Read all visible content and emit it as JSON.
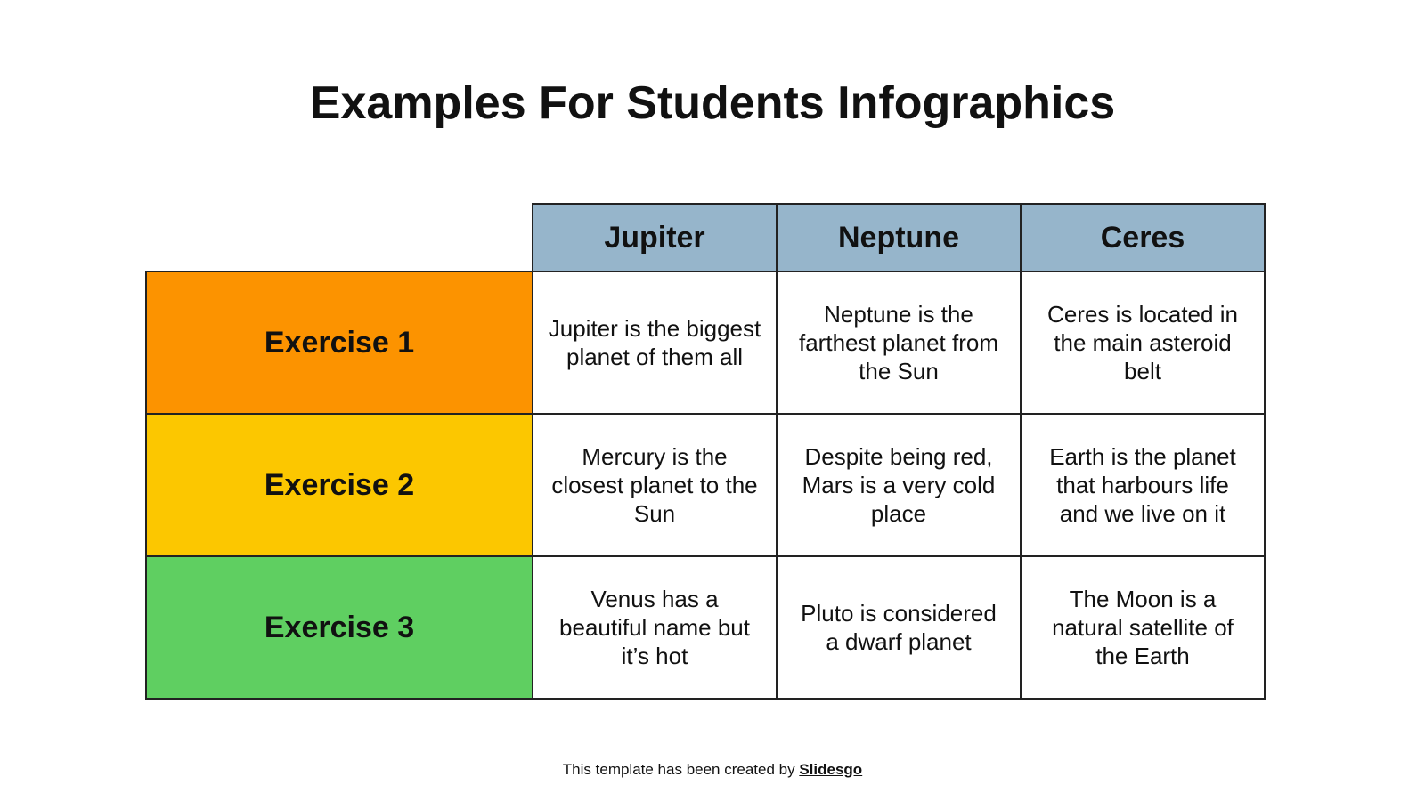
{
  "title": "Examples For Students Infographics",
  "colors": {
    "header": "#96b5cb",
    "exercise_1": "#fc9300",
    "exercise_2": "#fcc700",
    "exercise_3": "#5fcf61"
  },
  "columns": [
    "Jupiter",
    "Neptune",
    "Ceres"
  ],
  "rows": [
    {
      "label": "Exercise 1",
      "cells": [
        "Jupiter is the biggest planet of them all",
        "Neptune is the farthest planet from the Sun",
        "Ceres is located in the main asteroid belt"
      ]
    },
    {
      "label": "Exercise 2",
      "cells": [
        "Mercury is the closest planet to the Sun",
        "Despite being red, Mars is a very cold place",
        "Earth is the planet that harbours life and we live on it"
      ]
    },
    {
      "label": "Exercise 3",
      "cells": [
        "Venus has a beautiful name but it’s hot",
        "Pluto is considered a dwarf planet",
        "The Moon is a natural satellite of the Earth"
      ]
    }
  ],
  "footer": {
    "text": "This template has been created by ",
    "link": "Slidesgo"
  }
}
